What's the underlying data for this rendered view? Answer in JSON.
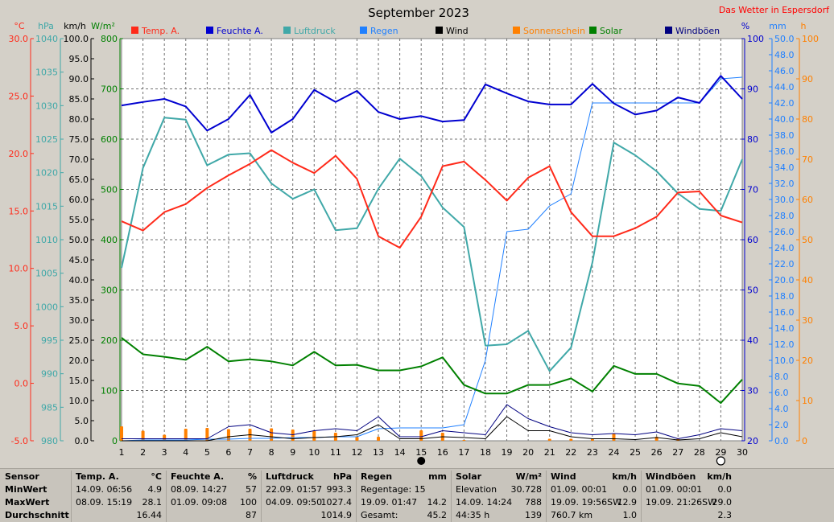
{
  "title": "September 2023",
  "site": "Das Wetter in Espersdorf",
  "axis_units": {
    "temp": "°C",
    "pressure": "hPa",
    "wind": "km/h",
    "solar": "W/m²",
    "humidity": "%",
    "rain": "mm",
    "sun": "h"
  },
  "colors": {
    "temp": "#ff2a1a",
    "humidity": "#0000d0",
    "pressure": "#40a8a8",
    "rain": "#2080ff",
    "wind": "#000000",
    "sunshine": "#ff8000",
    "solar": "#008000",
    "gusts": "#000080",
    "site": "#ff0000"
  },
  "legend": [
    {
      "label": "Temp. A.",
      "color": "#ff2a1a"
    },
    {
      "label": "Feuchte A.",
      "color": "#0000d0"
    },
    {
      "label": "Luftdruck",
      "color": "#40a8a8"
    },
    {
      "label": "Regen",
      "color": "#2080ff"
    },
    {
      "label": "Wind",
      "color": "#000000"
    },
    {
      "label": "Sonnenschein",
      "color": "#ff8000"
    },
    {
      "label": "Solar",
      "color": "#008000"
    },
    {
      "label": "Windböen",
      "color": "#000080"
    }
  ],
  "chart_data": {
    "type": "line",
    "title": "September 2023",
    "x": [
      1,
      2,
      3,
      4,
      5,
      6,
      7,
      8,
      9,
      10,
      11,
      12,
      13,
      14,
      15,
      16,
      17,
      18,
      19,
      20,
      21,
      22,
      23,
      24,
      25,
      26,
      27,
      28,
      29,
      30
    ],
    "axes": {
      "temp": {
        "label": "°C",
        "range": [
          -5,
          30
        ],
        "ticks": [
          "-5.0",
          "0.0",
          "5.0",
          "10.0",
          "15.0",
          "20.0",
          "25.0",
          "30.0"
        ]
      },
      "pressure": {
        "label": "hPa",
        "range": [
          980,
          1040
        ],
        "ticks": [
          "980",
          "985",
          "990",
          "995",
          "1000",
          "1005",
          "1010",
          "1015",
          "1020",
          "1025",
          "1030",
          "1035",
          "1040"
        ]
      },
      "wind": {
        "label": "km/h",
        "range": [
          0,
          100
        ],
        "ticks": [
          "0.0",
          "5.0",
          "10.0",
          "15.0",
          "20.0",
          "25.0",
          "30.0",
          "35.0",
          "40.0",
          "45.0",
          "50.0",
          "55.0",
          "60.0",
          "65.0",
          "70.0",
          "75.0",
          "80.0",
          "85.0",
          "90.0",
          "95.0",
          "100.0"
        ]
      },
      "solar": {
        "label": "W/m²",
        "range": [
          0,
          800
        ],
        "ticks": [
          "0",
          "100",
          "200",
          "300",
          "400",
          "500",
          "600",
          "700",
          "800"
        ]
      },
      "humidity": {
        "label": "%",
        "range": [
          20,
          100
        ],
        "ticks": [
          "20",
          "30",
          "40",
          "50",
          "60",
          "70",
          "80",
          "90",
          "100"
        ]
      },
      "rain": {
        "label": "mm",
        "range": [
          0,
          50
        ],
        "ticks": [
          "0.0",
          "2.0",
          "4.0",
          "6.0",
          "8.0",
          "10.0",
          "12.0",
          "14.0",
          "16.0",
          "18.0",
          "20.0",
          "22.0",
          "24.0",
          "26.0",
          "28.0",
          "30.0",
          "32.0",
          "34.0",
          "36.0",
          "38.0",
          "40.0",
          "42.0",
          "44.0",
          "46.0",
          "48.0",
          "50.0"
        ]
      },
      "sun": {
        "label": "h",
        "range": [
          0,
          100
        ],
        "ticks": [
          "0",
          "10",
          "20",
          "30",
          "40",
          "50",
          "60",
          "70",
          "80",
          "90",
          "100"
        ]
      }
    },
    "series": [
      {
        "name": "Temp. A.",
        "axis": "temp",
        "values": [
          14.1,
          13.3,
          14.9,
          15.6,
          17.0,
          18.1,
          19.1,
          20.3,
          19.2,
          18.3,
          19.8,
          17.8,
          12.8,
          11.8,
          14.5,
          18.9,
          19.3,
          17.7,
          15.9,
          17.9,
          18.9,
          14.9,
          12.8,
          12.8,
          13.5,
          14.5,
          16.6,
          16.7,
          14.6,
          14.0
        ]
      },
      {
        "name": "Feuchte A.",
        "axis": "humidity",
        "values": [
          86.7,
          87.4,
          88.0,
          86.5,
          81.7,
          84.0,
          88.8,
          81.3,
          84.0,
          89.8,
          87.4,
          89.6,
          85.4,
          84.0,
          84.6,
          83.5,
          83.8,
          90.9,
          89.1,
          87.5,
          86.9,
          86.9,
          91.0,
          87.1,
          84.9,
          85.7,
          88.3,
          87.2,
          92.6,
          88.0
        ]
      },
      {
        "name": "Luftdruck",
        "axis": "pressure",
        "values": [
          1005.8,
          1020.7,
          1028.2,
          1027.9,
          1021.1,
          1022.7,
          1022.9,
          1018.4,
          1016.1,
          1017.5,
          1011.4,
          1011.7,
          1017.6,
          1022.1,
          1019.5,
          1014.8,
          1011.9,
          994.2,
          994.4,
          996.4,
          990.4,
          993.9,
          1006.6,
          1024.5,
          1022.6,
          1020.2,
          1016.9,
          1014.6,
          1014.3,
          1022.0
        ]
      },
      {
        "name": "Regen",
        "axis": "rain",
        "values": [
          0.0,
          0.1,
          0.1,
          0.1,
          0.2,
          0.2,
          0.3,
          0.3,
          0.4,
          0.4,
          0.5,
          0.5,
          1.5,
          1.6,
          1.6,
          1.6,
          2.0,
          10.0,
          26.0,
          26.3,
          29.2,
          30.7,
          42.0,
          42.0,
          42.0,
          42.0,
          42.0,
          42.0,
          45.0,
          45.2
        ]
      },
      {
        "name": "Wind",
        "axis": "wind",
        "values": [
          0.0,
          0.0,
          0.0,
          0.0,
          0.0,
          1.0,
          1.5,
          1.0,
          0.5,
          0.8,
          1.0,
          1.5,
          4.0,
          0.5,
          0.5,
          1.0,
          0.8,
          0.5,
          6.0,
          2.5,
          2.5,
          1.0,
          0.5,
          0.5,
          0.3,
          0.8,
          0.2,
          0.5,
          2.0,
          1.0
        ]
      },
      {
        "name": "Windböen",
        "axis": "wind",
        "values": [
          0.5,
          0.5,
          0.5,
          0.5,
          0.5,
          3.5,
          4.0,
          2.0,
          1.5,
          2.5,
          3.0,
          2.5,
          6.0,
          1.0,
          1.0,
          2.5,
          2.0,
          1.5,
          9.0,
          5.5,
          3.5,
          2.0,
          1.5,
          1.8,
          1.5,
          2.2,
          0.5,
          1.5,
          3.0,
          2.5
        ]
      },
      {
        "name": "Solar",
        "axis": "solar",
        "values": [
          205,
          172,
          167,
          161,
          187,
          158,
          162,
          158,
          150,
          177,
          150,
          151,
          140,
          140,
          148,
          166,
          111,
          94,
          94,
          111,
          111,
          124,
          98,
          149,
          133,
          133,
          114,
          109,
          75,
          122
        ]
      }
    ],
    "bars": {
      "name": "Sonnenschein",
      "axis": "sun",
      "values": [
        3.6,
        2.5,
        1.5,
        3.0,
        3.2,
        2.9,
        3.0,
        3.1,
        2.8,
        2.6,
        2.0,
        1.0,
        1.0,
        0.0,
        2.6,
        2.0,
        0.2,
        0.0,
        0.0,
        0.0,
        0.5,
        0.5,
        0.5,
        1.8,
        0.0,
        1.0,
        0.5,
        0.0,
        0.0,
        0.0
      ]
    },
    "moon": {
      "full": 29,
      "new": 15
    },
    "grid": true,
    "legend_position": "top"
  },
  "table": {
    "row_labels": [
      "Sensor",
      "MinWert",
      "MaxWert",
      "Durchschnitt"
    ],
    "columns": [
      {
        "header": "Temp. A.",
        "unit": "°C",
        "rows": [
          [
            "14.09.  06:56",
            "4.9"
          ],
          [
            "08.09.  15:19",
            "28.1"
          ],
          [
            "",
            "16.44"
          ]
        ]
      },
      {
        "header": "Feuchte A.",
        "unit": "%",
        "rows": [
          [
            "08.09.  14:27",
            "57"
          ],
          [
            "01.09.  09:08",
            "100"
          ],
          [
            "",
            "87"
          ]
        ]
      },
      {
        "header": "Luftdruck",
        "unit": "hPa",
        "rows": [
          [
            "22.09.  01:57",
            "993.3"
          ],
          [
            "04.09.  09:50",
            "1027.4"
          ],
          [
            "",
            "1014.9"
          ]
        ]
      },
      {
        "header": "Regen",
        "unit": "mm",
        "rows": [
          [
            "Regentage: 15",
            ""
          ],
          [
            "19.09.  01:47",
            "14.2"
          ],
          [
            "Gesamt:",
            "45.2"
          ]
        ]
      },
      {
        "header": "Solar",
        "unit": "W/m²",
        "rows": [
          [
            "Elevation",
            "30.728"
          ],
          [
            "14.09.  14:24",
            "788"
          ],
          [
            "44:35 h",
            "139"
          ]
        ]
      },
      {
        "header": "Wind",
        "unit": "km/h",
        "rows": [
          [
            "01.09.  00:01",
            "0.0"
          ],
          [
            "19.09.  19:56SW",
            "12.9"
          ],
          [
            "760.7 km",
            "1.0"
          ]
        ]
      },
      {
        "header": "Windböen",
        "unit": "km/h",
        "rows": [
          [
            "01.09.  00:01",
            "0.0"
          ],
          [
            "19.09.  21:26SW",
            "29.0"
          ],
          [
            "",
            "2.3"
          ]
        ]
      }
    ]
  }
}
